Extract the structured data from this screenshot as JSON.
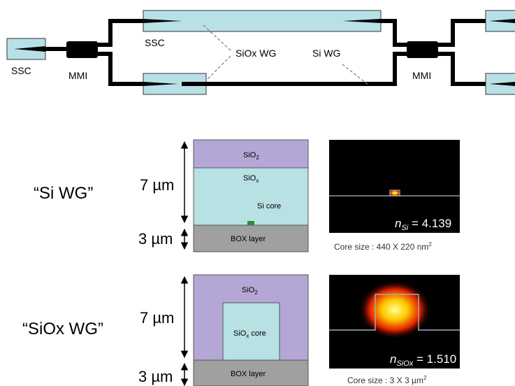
{
  "top_diagram": {
    "ssc_left": "SSC",
    "mmi_left": "MMI",
    "ssc_top": "SSC",
    "siox_wg": "SiOx WG",
    "si_wg": "Si WG",
    "mmi_right": "MMI"
  },
  "panels": [
    {
      "name": "“Si WG”",
      "dim_top": "7 µm",
      "dim_bottom": "3 µm",
      "cladding": {
        "text": "SiO",
        "sub": "2"
      },
      "core_layer": {
        "text": "SiO",
        "sub": "x"
      },
      "core_label": "Si core",
      "box": "BOX layer",
      "index": {
        "symbol": "n",
        "sub": "Si",
        "value": " = 4.139"
      },
      "core_size": {
        "text": "Core size  : 440 X 220 nm",
        "sup": "2"
      }
    },
    {
      "name": "“SiOx WG”",
      "dim_top": "7 µm",
      "dim_bottom": "3 µm",
      "cladding": {
        "text": "SiO",
        "sub": "2"
      },
      "core_label": {
        "text": "SiO",
        "sub": "x",
        "rest": " core"
      },
      "box": "BOX layer",
      "index": {
        "symbol": "n",
        "sub": "SiOx",
        "value": " = 1.510"
      },
      "core_size": {
        "text": "Core size : 3 X 3 µm",
        "sup": "2"
      }
    }
  ]
}
